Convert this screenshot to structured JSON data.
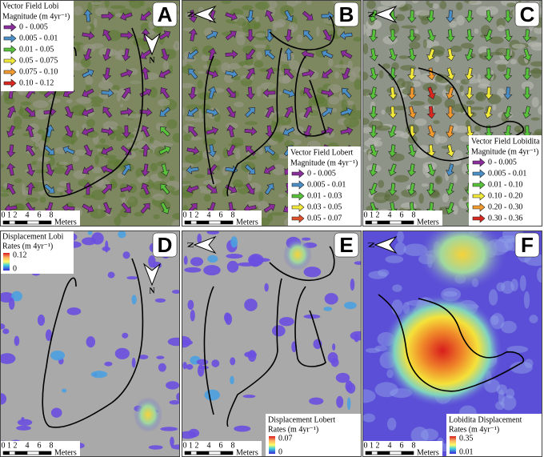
{
  "panels": [
    {
      "letter": "A",
      "legend_title": "Vector Field Lobi",
      "legend_subtitle": "Magnitude (m 4yr⁻¹)",
      "classes": [
        {
          "label": "0 - 0.005",
          "color": "#8b2c9c"
        },
        {
          "label": "0.005 - 0.01",
          "color": "#4b8fc9"
        },
        {
          "label": "0.01 - 0.05",
          "color": "#57c23a"
        },
        {
          "label": "0.05 - 0.075",
          "color": "#f2ea3a"
        },
        {
          "label": "0.075 - 0.10",
          "color": "#f29a2e"
        },
        {
          "label": "0.10 - 0.12",
          "color": "#d9271f"
        }
      ]
    },
    {
      "letter": "B",
      "legend_title": "Vector Field Lobert",
      "legend_subtitle": "Magnitude (m 4yr⁻¹)",
      "classes": [
        {
          "label": "0 - 0.005",
          "color": "#8b2c9c"
        },
        {
          "label": "0.005 - 0.01",
          "color": "#4b8fc9"
        },
        {
          "label": "0.01 - 0.03",
          "color": "#57c23a"
        },
        {
          "label": "0.03 - 0.05",
          "color": "#f2ea3a"
        },
        {
          "label": "0.05 - 0.07",
          "color": "#e0502a"
        }
      ]
    },
    {
      "letter": "C",
      "legend_title": "Vector Field Lobidita",
      "legend_subtitle": "Magnitude (m 4yr⁻¹)",
      "classes": [
        {
          "label": "0 - 0.005",
          "color": "#8b2c9c"
        },
        {
          "label": "0.005 - 0.01",
          "color": "#4b8fc9"
        },
        {
          "label": "0.01 - 0.10",
          "color": "#57c23a"
        },
        {
          "label": "0.10 - 0.20",
          "color": "#f2ea3a"
        },
        {
          "label": "0.20 - 0.30",
          "color": "#f29a2e"
        },
        {
          "label": "0.30 - 0.36",
          "color": "#d9271f"
        }
      ]
    },
    {
      "letter": "D",
      "legend_title": "Displacement Lobi",
      "legend_subtitle": "Rates (m 4yr⁻¹)",
      "colorbar_max": "0.12",
      "colorbar_min": "0"
    },
    {
      "letter": "E",
      "legend_title": "Displacement Lobert",
      "legend_subtitle": "Rates (m 4yr⁻¹)",
      "colorbar_max": "0.07",
      "colorbar_min": "0"
    },
    {
      "letter": "F",
      "legend_title": "Lobidita Displacement",
      "legend_subtitle": "Rates (m 4yr⁻¹)",
      "colorbar_max": "0.35",
      "colorbar_min": "0.01"
    }
  ],
  "scale_bar": {
    "ticks": [
      0,
      1,
      2,
      4,
      6,
      8
    ],
    "unit": "Meters"
  },
  "north": "N"
}
